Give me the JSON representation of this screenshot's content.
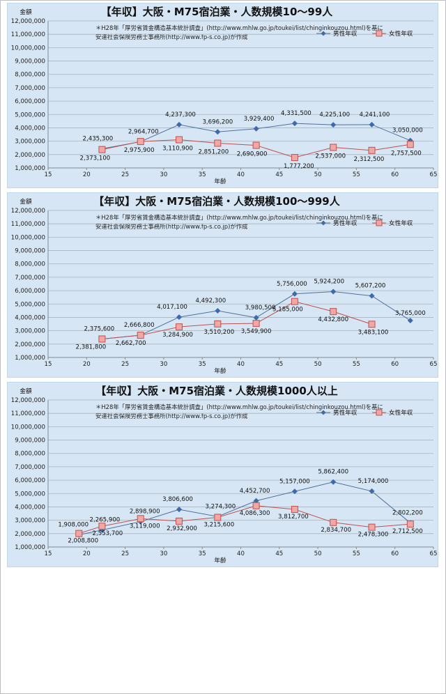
{
  "chart_data": [
    {
      "type": "line",
      "title": "【年収】大阪・M75宿泊業・人数規模10～99人",
      "note_line1": "＊H28年「厚労省賃金構造基本統計調査」(http://www.mhlw.go.jp/toukei/list/chinginkouzou.html)を基に",
      "note_line2": "安達社会保険労務士事務所(http://www.fp-s.co.jp)が作成",
      "ylabel": "金額",
      "xlabel": "年齢",
      "xlim": [
        15,
        65
      ],
      "xticks": [
        "15",
        "20",
        "25",
        "30",
        "35",
        "40",
        "45",
        "50",
        "55",
        "60",
        "65"
      ],
      "ylim": [
        1000000,
        12000000
      ],
      "yticks": [
        "1,000,000",
        "2,000,000",
        "3,000,000",
        "4,000,000",
        "5,000,000",
        "6,000,000",
        "7,000,000",
        "8,000,000",
        "9,000,000",
        "10,000,000",
        "11,000,000",
        "12,000,000"
      ],
      "grid": "horizontal",
      "legend_position": "top-right",
      "series": [
        {
          "name": "男性年収",
          "color": "#4f6f9f",
          "marker": "diamond",
          "points": [
            {
              "x": 22,
              "y": 2435300,
              "label": "2,435,300"
            },
            {
              "x": 27,
              "y": 2964700,
              "label": "2,964,700"
            },
            {
              "x": 32,
              "y": 4237300,
              "label": "4,237,300"
            },
            {
              "x": 37,
              "y": 3696200,
              "label": "3,696,200"
            },
            {
              "x": 42,
              "y": 3929400,
              "label": "3,929,400"
            },
            {
              "x": 47,
              "y": 4331500,
              "label": "4,331,500"
            },
            {
              "x": 52,
              "y": 4225100,
              "label": "4,225,100"
            },
            {
              "x": 57,
              "y": 4241100,
              "label": "4,241,100"
            },
            {
              "x": 62,
              "y": 3050000,
              "label": "3,050,000"
            }
          ]
        },
        {
          "name": "女性年収",
          "color": "#c0504d",
          "marker": "square",
          "points": [
            {
              "x": 22,
              "y": 2373100,
              "label": "2,373,100"
            },
            {
              "x": 27,
              "y": 2975900,
              "label": "2,975,900"
            },
            {
              "x": 32,
              "y": 3110900,
              "label": "3,110,900"
            },
            {
              "x": 37,
              "y": 2851200,
              "label": "2,851,200"
            },
            {
              "x": 42,
              "y": 2690900,
              "label": "2,690,900"
            },
            {
              "x": 47,
              "y": 1777200,
              "label": "1,777,200"
            },
            {
              "x": 52,
              "y": 2537000,
              "label": "2,537,000"
            },
            {
              "x": 57,
              "y": 2312500,
              "label": "2,312,500"
            },
            {
              "x": 62,
              "y": 2757500,
              "label": "2,757,500"
            }
          ]
        }
      ]
    },
    {
      "type": "line",
      "title": "【年収】大阪・M75宿泊業・人数規模100～999人",
      "note_line1": "＊H28年「厚労省賃金構造基本統計調査」(http://www.mhlw.go.jp/toukei/list/chinginkouzou.html)を基に",
      "note_line2": "安達社会保険労務士事務所(http://www.fp-s.co.jp)が作成",
      "ylabel": "金額",
      "xlabel": "年齢",
      "xlim": [
        15,
        65
      ],
      "xticks": [
        "15",
        "20",
        "25",
        "30",
        "35",
        "40",
        "45",
        "50",
        "55",
        "60",
        "65"
      ],
      "ylim": [
        1000000,
        12000000
      ],
      "yticks": [
        "1,000,000",
        "2,000,000",
        "3,000,000",
        "4,000,000",
        "5,000,000",
        "6,000,000",
        "7,000,000",
        "8,000,000",
        "9,000,000",
        "10,000,000",
        "11,000,000",
        "12,000,000"
      ],
      "grid": "horizontal",
      "legend_position": "top-right",
      "series": [
        {
          "name": "男性年収",
          "color": "#4f6f9f",
          "marker": "diamond",
          "points": [
            {
              "x": 22,
              "y": 2375600,
              "label": "2,375,600"
            },
            {
              "x": 27,
              "y": 2666800,
              "label": "2,666,800"
            },
            {
              "x": 32,
              "y": 4017100,
              "label": "4,017,100"
            },
            {
              "x": 37,
              "y": 4492300,
              "label": "4,492,300"
            },
            {
              "x": 42,
              "y": 3980500,
              "label": "3,980,500"
            },
            {
              "x": 47,
              "y": 5756000,
              "label": "5,756,000"
            },
            {
              "x": 52,
              "y": 5924200,
              "label": "5,924,200"
            },
            {
              "x": 57,
              "y": 5607200,
              "label": "5,607,200"
            },
            {
              "x": 62,
              "y": 3765000,
              "label": "3,765,000"
            }
          ]
        },
        {
          "name": "女性年収",
          "color": "#c0504d",
          "marker": "square",
          "points": [
            {
              "x": 22,
              "y": 2381800,
              "label": "2,381,800"
            },
            {
              "x": 27,
              "y": 2662700,
              "label": "2,662,700"
            },
            {
              "x": 32,
              "y": 3284900,
              "label": "3,284,900"
            },
            {
              "x": 37,
              "y": 3510200,
              "label": "3,510,200"
            },
            {
              "x": 42,
              "y": 3549900,
              "label": "3,549,900"
            },
            {
              "x": 47,
              "y": 5185000,
              "label": "5,185,000"
            },
            {
              "x": 52,
              "y": 4432800,
              "label": "4,432,800"
            },
            {
              "x": 57,
              "y": 3483100,
              "label": "3,483,100"
            }
          ]
        }
      ]
    },
    {
      "type": "line",
      "title": "【年収】大阪・M75宿泊業・人数規模1000人以上",
      "note_line1": "＊H28年「厚労省賃金構造基本統計調査」(http://www.mhlw.go.jp/toukei/list/chinginkouzou.html)を基に",
      "note_line2": "安達社会保険労務士事務所(http://www.fp-s.co.jp)が作成",
      "ylabel": "金額",
      "xlabel": "年齢",
      "xlim": [
        15,
        65
      ],
      "xticks": [
        "15",
        "20",
        "25",
        "30",
        "35",
        "40",
        "45",
        "50",
        "55",
        "60",
        "65"
      ],
      "ylim": [
        1000000,
        12000000
      ],
      "yticks": [
        "1,000,000",
        "2,000,000",
        "3,000,000",
        "4,000,000",
        "5,000,000",
        "6,000,000",
        "7,000,000",
        "8,000,000",
        "9,000,000",
        "10,000,000",
        "11,000,000",
        "12,000,000"
      ],
      "grid": "horizontal",
      "legend_position": "top-right",
      "series": [
        {
          "name": "男性年収",
          "color": "#4f6f9f",
          "marker": "diamond",
          "points": [
            {
              "x": 19,
              "y": 1908000,
              "label": "1,908,000"
            },
            {
              "x": 22,
              "y": 2265900,
              "label": "2,265,900"
            },
            {
              "x": 27,
              "y": 2898900,
              "label": "2,898,900"
            },
            {
              "x": 32,
              "y": 3806600,
              "label": "3,806,600"
            },
            {
              "x": 37,
              "y": 3274300,
              "label": "3,274,300"
            },
            {
              "x": 42,
              "y": 4452700,
              "label": "4,452,700"
            },
            {
              "x": 47,
              "y": 5157000,
              "label": "5,157,000"
            },
            {
              "x": 52,
              "y": 5862400,
              "label": "5,862,400"
            },
            {
              "x": 57,
              "y": 5174000,
              "label": "5,174,000"
            },
            {
              "x": 62,
              "y": 2802200,
              "label": "2,802,200"
            }
          ]
        },
        {
          "name": "女性年収",
          "color": "#c0504d",
          "marker": "square",
          "points": [
            {
              "x": 19,
              "y": 2008800,
              "label": "2,008,800"
            },
            {
              "x": 22,
              "y": 2553700,
              "label": "2,553,700"
            },
            {
              "x": 27,
              "y": 3119000,
              "label": "3,119,000"
            },
            {
              "x": 32,
              "y": 2932900,
              "label": "2,932,900"
            },
            {
              "x": 37,
              "y": 3215600,
              "label": "3,215,600"
            },
            {
              "x": 42,
              "y": 4086300,
              "label": "4,086,300"
            },
            {
              "x": 47,
              "y": 3812700,
              "label": "3,812,700"
            },
            {
              "x": 52,
              "y": 2834700,
              "label": "2,834,700"
            },
            {
              "x": 57,
              "y": 2478300,
              "label": "2,478,300"
            },
            {
              "x": 62,
              "y": 2712500,
              "label": "2,712,500"
            }
          ]
        }
      ]
    }
  ]
}
